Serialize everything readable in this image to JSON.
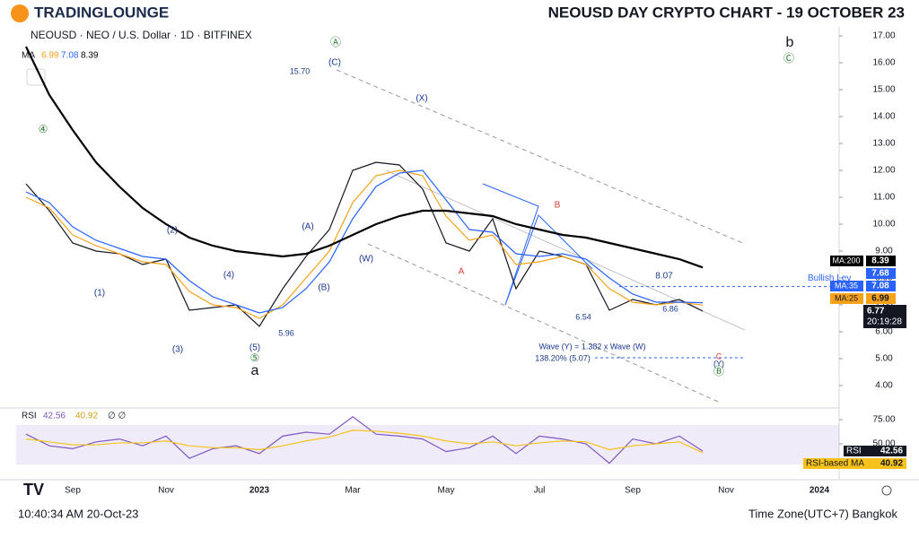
{
  "header": {
    "brand": "TRADINGLOUNGE",
    "title": "NEOUSD DAY CRYPTO CHART - 19 OCTOBER 23"
  },
  "footer": {
    "time": "10:40:34 AM 20-Oct-23",
    "timezone": "Time Zone(UTC+7) Bangkok"
  },
  "chart_data": [
    {
      "type": "line",
      "title": "NEOUSD · NEO / U.S. Dollar · 1D · BITFINEX",
      "legend_label": "MA",
      "categories": [
        null,
        null,
        "Sep",
        null,
        null,
        null,
        "Nov",
        null,
        null,
        null,
        "2023",
        null,
        null,
        null,
        "Mar",
        null,
        null,
        null,
        "May",
        null,
        null,
        null,
        "Jul",
        null,
        null,
        null,
        "Sep",
        null,
        null,
        null,
        "Nov",
        null,
        null,
        null,
        "2024"
      ],
      "series": [
        {
          "name": "NEOUSD",
          "color": "#131722",
          "values": [
            11.5,
            10.5,
            9.3,
            9.0,
            8.9,
            8.5,
            8.7,
            6.8,
            6.9,
            7.0,
            6.2,
            7.6,
            8.8,
            9.8,
            12.0,
            12.3,
            12.2,
            11.3,
            9.3,
            9.0,
            10.2,
            7.6,
            9.0,
            8.8,
            8.5,
            6.8,
            7.2,
            7.0,
            7.2,
            6.77,
            null,
            null,
            null,
            null,
            null
          ]
        },
        {
          "name": "MA:25",
          "color": "#f7a21b",
          "values": [
            11.0,
            10.6,
            9.6,
            9.2,
            8.9,
            8.6,
            8.5,
            7.5,
            7.0,
            6.9,
            6.5,
            7.0,
            8.0,
            9.0,
            10.8,
            11.8,
            12.0,
            11.8,
            10.3,
            9.4,
            9.6,
            8.5,
            8.6,
            8.8,
            8.5,
            7.6,
            7.1,
            7.0,
            7.1,
            6.99,
            null,
            null,
            null,
            null,
            null
          ]
        },
        {
          "name": "MA:35",
          "color": "#2962ff",
          "values": [
            11.2,
            10.8,
            9.9,
            9.4,
            9.1,
            8.8,
            8.7,
            7.9,
            7.3,
            7.0,
            6.7,
            6.9,
            7.6,
            8.6,
            10.2,
            11.4,
            11.9,
            12.0,
            10.9,
            9.8,
            9.7,
            8.9,
            8.8,
            8.9,
            8.7,
            8.0,
            7.4,
            7.1,
            7.1,
            7.08,
            null,
            null,
            null,
            null,
            null
          ]
        },
        {
          "name": "MA:200",
          "color": "#000000",
          "values": [
            16.6,
            14.8,
            13.5,
            12.3,
            11.4,
            10.6,
            10.0,
            9.5,
            9.2,
            9.0,
            8.9,
            8.8,
            8.9,
            9.2,
            9.6,
            10.0,
            10.3,
            10.5,
            10.5,
            10.4,
            10.3,
            10.0,
            9.8,
            9.6,
            9.5,
            9.3,
            9.1,
            8.9,
            8.7,
            8.39,
            null,
            null,
            null,
            null,
            null
          ]
        }
      ],
      "countdown": "20:19:28",
      "level": {
        "name": "Bullish Lev",
        "value": 7.68
      },
      "ylim": [
        3.5,
        17.5
      ],
      "yticks": [
        {
          "value": 4,
          "label": "4.00"
        },
        {
          "value": 5,
          "label": "5.00"
        },
        {
          "value": 6,
          "label": "6.00"
        },
        {
          "value": 7,
          "label": "7.00"
        },
        {
          "value": 8,
          "label": "8.00"
        },
        {
          "value": 9,
          "label": "9.00"
        },
        {
          "value": 10,
          "label": "10.00"
        },
        {
          "value": 11,
          "label": "11.00"
        },
        {
          "value": 12,
          "label": "12.00"
        },
        {
          "value": 13,
          "label": "13.00"
        },
        {
          "value": 14,
          "label": "14.00"
        },
        {
          "value": 15,
          "label": "15.00"
        },
        {
          "value": 16,
          "label": "16.00"
        },
        {
          "value": 17,
          "label": "17.00"
        }
      ],
      "annotations": [
        "Ⓐ",
        "(C)",
        "15.70",
        "(X)",
        "B",
        "(A)",
        "(W)",
        "A",
        "(B)",
        "(2)",
        "(4)",
        "(1)",
        "(3)",
        "(5)",
        "⑤",
        "a",
        "5.96",
        "④",
        "b",
        "Ⓒ",
        "8.07",
        "6.54",
        "6.86",
        "Wave (Y) = 1.382 x Wave (W)",
        "138.20% (5.07)",
        "C",
        "(Y)",
        "Ⓑ"
      ]
    },
    {
      "type": "line",
      "title": "RSI",
      "legend_extra": "∅ ∅",
      "series": [
        {
          "name": "RSI",
          "color": "#7e57c2",
          "values": [
            60,
            48,
            45,
            52,
            55,
            48,
            58,
            35,
            45,
            48,
            40,
            58,
            62,
            60,
            78,
            60,
            58,
            55,
            42,
            46,
            58,
            40,
            58,
            55,
            50,
            30,
            55,
            50,
            58,
            42.56,
            null,
            null,
            null,
            null,
            null
          ]
        },
        {
          "name": "RSI-based MA",
          "color": "#f7c21b",
          "values": [
            55,
            52,
            49,
            49,
            51,
            51,
            53,
            48,
            46,
            46,
            44,
            48,
            53,
            57,
            64,
            63,
            61,
            58,
            53,
            50,
            52,
            48,
            51,
            53,
            52,
            44,
            48,
            50,
            52,
            40.92,
            null,
            null,
            null,
            null,
            null
          ]
        }
      ],
      "ylim": [
        13,
        87
      ],
      "yticks": [
        {
          "value": 75,
          "label": "75.00"
        },
        {
          "value": 50,
          "label": "50.00"
        }
      ]
    }
  ]
}
